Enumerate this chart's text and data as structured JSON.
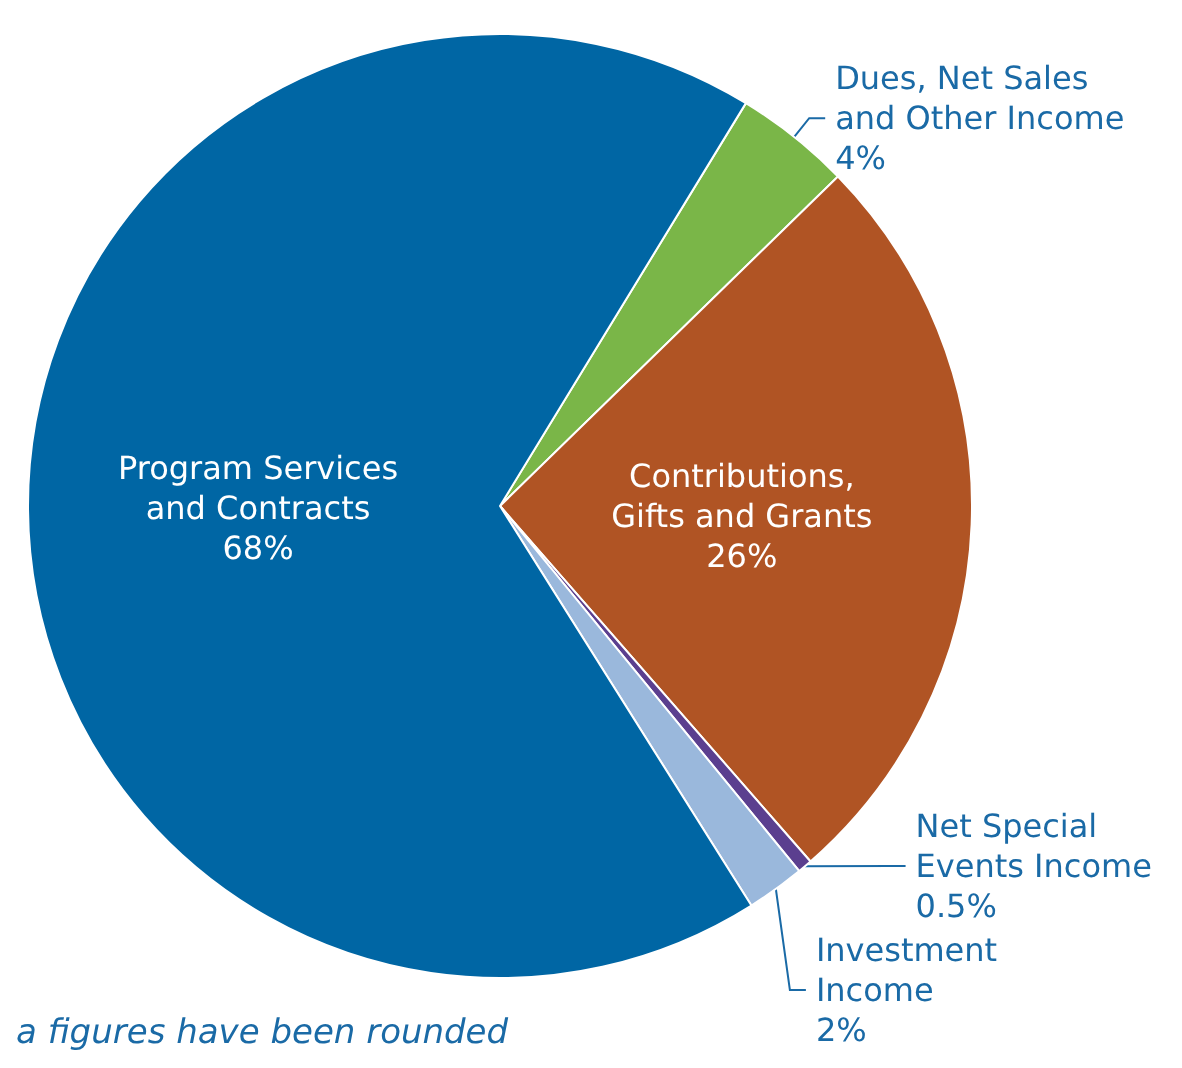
{
  "chart_data": {
    "type": "pie",
    "categories": [
      "Dues, Net Sales and Other Income",
      "Contributions, Gifts and Grants",
      "Net Special Events Income",
      "Investment Income",
      "Program Services and Contracts"
    ],
    "values": [
      4,
      26,
      0.5,
      2,
      68
    ],
    "colors": [
      "#7ab648",
      "#b05424",
      "#5b3f8f",
      "#9ab8dc",
      "#0066a4"
    ],
    "value_labels": [
      "4%",
      "26%",
      "0.5%",
      "2%",
      "68%"
    ],
    "annotations": [
      "a figures have been rounded"
    ]
  }
}
